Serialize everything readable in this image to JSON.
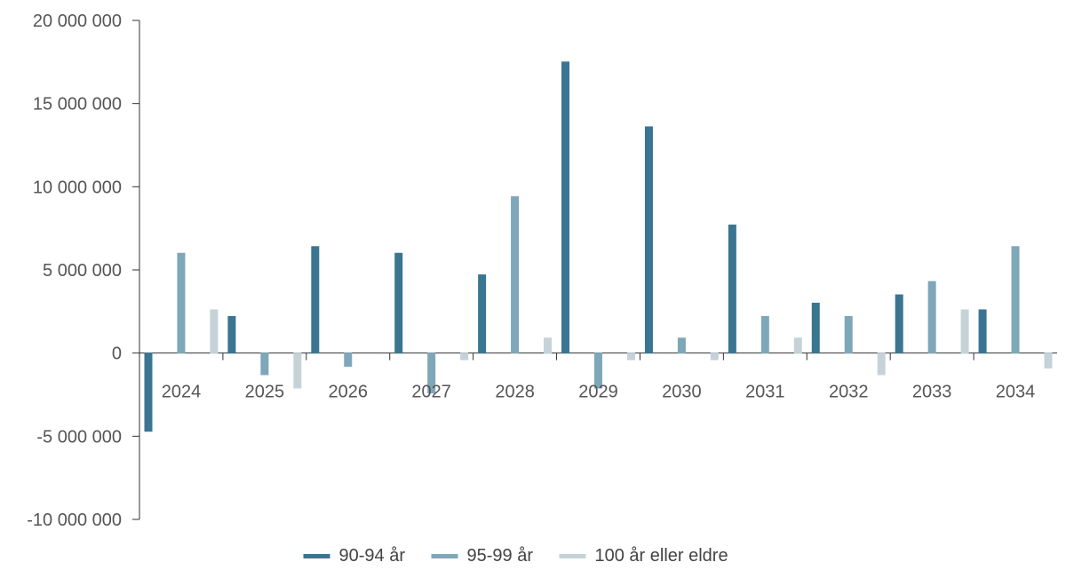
{
  "chart_data": {
    "type": "bar",
    "title": "",
    "xlabel": "",
    "ylabel": "",
    "categories": [
      "2024",
      "2025",
      "2026",
      "2027",
      "2028",
      "2029",
      "2030",
      "2031",
      "2032",
      "2033",
      "2034"
    ],
    "series": [
      {
        "name": "90-94 år",
        "color": "#3a7592",
        "values": [
          -4700000,
          2200000,
          6400000,
          6000000,
          4700000,
          17500000,
          13600000,
          7700000,
          3000000,
          3500000,
          2600000
        ]
      },
      {
        "name": "95-99 år",
        "color": "#7ea7b9",
        "values": [
          6000000,
          -1300000,
          -800000,
          -2400000,
          9400000,
          -2100000,
          900000,
          2200000,
          2200000,
          4300000,
          6400000
        ]
      },
      {
        "name": "100 år eller eldre",
        "color": "#c5d3d8",
        "values": [
          2600000,
          -2100000,
          0,
          -400000,
          900000,
          -400000,
          -400000,
          900000,
          -1300000,
          2600000,
          -900000
        ]
      }
    ],
    "ylim": [
      -10000000,
      20000000
    ],
    "yticks": [
      20000000,
      15000000,
      10000000,
      5000000,
      0,
      -5000000,
      -10000000
    ],
    "ytick_labels": [
      "20 000 000",
      "15 000 000",
      "10 000 000",
      "5 000 000",
      "0",
      "-5 000 000",
      "-10 000 000"
    ],
    "grid": false,
    "legend_position": "bottom"
  }
}
